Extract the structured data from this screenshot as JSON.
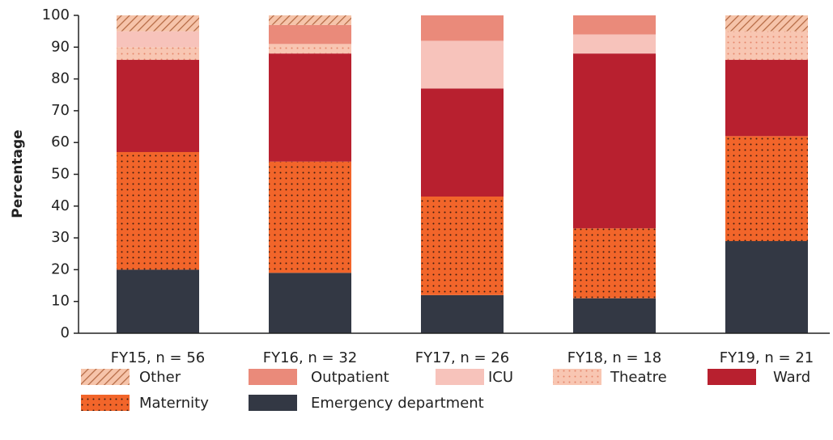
{
  "chart_data": {
    "type": "stacked_bar",
    "y_label": "Percentage",
    "categories": [
      "FY15, n = 56",
      "FY16, n = 32",
      "FY17, n = 26",
      "FY18, n = 18",
      "FY19, n = 21"
    ],
    "series": [
      {
        "name": "Emergency department",
        "color": "#333844",
        "pattern": "solid",
        "values": [
          20,
          19,
          12,
          11,
          29
        ]
      },
      {
        "name": "Maternity",
        "color": "#f2652a",
        "pattern": "dots",
        "values": [
          37,
          35,
          31,
          22,
          33
        ]
      },
      {
        "name": "Ward",
        "color": "#b8202f",
        "pattern": "solid",
        "values": [
          29,
          34,
          34,
          55,
          24
        ]
      },
      {
        "name": "Theatre",
        "color": "#f8c6b2",
        "pattern": "dots",
        "values": [
          4,
          3,
          0,
          0,
          9
        ]
      },
      {
        "name": "ICU",
        "color": "#f7c3bb",
        "pattern": "solid",
        "values": [
          5,
          0,
          15,
          6,
          0
        ]
      },
      {
        "name": "Outpatient",
        "color": "#ea8a7a",
        "pattern": "solid",
        "values": [
          0,
          6,
          8,
          6,
          0
        ]
      },
      {
        "name": "Other",
        "color": "#f6c4aa",
        "pattern": "hatch",
        "values": [
          5,
          3,
          0,
          0,
          5
        ]
      }
    ],
    "ylim": [
      0,
      100
    ],
    "yticks": [
      0,
      10,
      20,
      30,
      40,
      50,
      60,
      70,
      80,
      90,
      100
    ]
  }
}
